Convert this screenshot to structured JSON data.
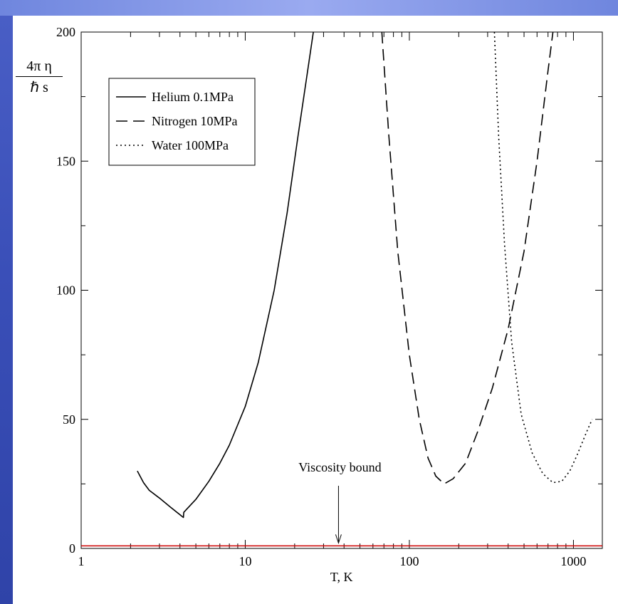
{
  "chart_data": {
    "type": "line",
    "title": "",
    "xlabel": "T, K",
    "ylabel_numerator": "4π η",
    "ylabel_denominator": "ℏ s",
    "x_scale": "log",
    "xlim": [
      1,
      1500
    ],
    "ylim": [
      0,
      200
    ],
    "x_ticks": [
      1,
      10,
      100,
      1000
    ],
    "x_tick_labels": [
      "1",
      "10",
      "100",
      "1000"
    ],
    "y_ticks": [
      0,
      50,
      100,
      150,
      200
    ],
    "y_tick_labels": [
      "0",
      "50",
      "100",
      "150",
      "200"
    ],
    "grid": false,
    "legend_position": "top-left",
    "series": [
      {
        "name": "Helium 0.1MPa",
        "style": "solid",
        "color": "#000000",
        "points": [
          [
            2.2,
            30
          ],
          [
            2.4,
            25.5
          ],
          [
            2.6,
            22.5
          ],
          [
            3.0,
            19.5
          ],
          [
            3.5,
            16
          ],
          [
            4.2,
            12
          ],
          [
            4.22,
            14
          ],
          [
            5.0,
            19
          ],
          [
            6.0,
            26
          ],
          [
            7.0,
            33
          ],
          [
            8.0,
            40
          ],
          [
            10.0,
            55
          ],
          [
            12.0,
            72
          ],
          [
            15.0,
            100
          ],
          [
            18.0,
            130
          ],
          [
            21.0,
            160
          ],
          [
            24.0,
            185
          ],
          [
            26.0,
            200
          ]
        ]
      },
      {
        "name": "Nitrogen 10MPa",
        "style": "dashed",
        "color": "#000000",
        "points": [
          [
            68,
            200
          ],
          [
            75,
            160
          ],
          [
            85,
            115
          ],
          [
            100,
            75
          ],
          [
            115,
            50
          ],
          [
            130,
            35
          ],
          [
            145,
            28
          ],
          [
            163,
            25
          ],
          [
            185,
            27
          ],
          [
            220,
            33
          ],
          [
            260,
            45
          ],
          [
            320,
            62
          ],
          [
            400,
            85
          ],
          [
            500,
            115
          ],
          [
            600,
            150
          ],
          [
            700,
            185
          ],
          [
            750,
            200
          ]
        ]
      },
      {
        "name": "Water 100MPa",
        "style": "dotted",
        "color": "#000000",
        "points": [
          [
            330,
            200
          ],
          [
            350,
            160
          ],
          [
            380,
            118
          ],
          [
            420,
            80
          ],
          [
            480,
            52
          ],
          [
            560,
            37
          ],
          [
            650,
            29
          ],
          [
            750,
            25.5
          ],
          [
            850,
            26
          ],
          [
            950,
            30
          ],
          [
            1050,
            36
          ],
          [
            1200,
            45
          ],
          [
            1300,
            50
          ]
        ]
      }
    ],
    "reference_line": {
      "label": "Viscosity bound",
      "y": 1,
      "color": "#cc0000"
    },
    "annotation": {
      "text": "Viscosity bound",
      "arrow_x": 37,
      "arrow_y": 1
    }
  }
}
